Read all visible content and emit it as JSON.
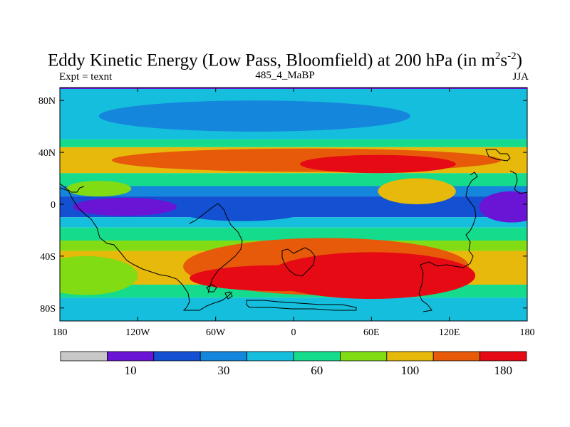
{
  "title": {
    "main": "Eddy Kinetic Energy (Low Pass, Bloomfield) at 200 hPa (in m",
    "sup1": "2",
    "mid": "s",
    "sup2": "-2",
    "close": ")"
  },
  "subtitles": {
    "left": "Expt = texnt",
    "center": "485_4_MaBP",
    "right": "JJA"
  },
  "chart_data": {
    "type": "heatmap",
    "title": "Eddy Kinetic Energy (Low Pass, Bloomfield) at 200 hPa (in m2s-2)",
    "variable": "Eddy Kinetic Energy",
    "units": "m2s-2",
    "level": "200 hPa",
    "season": "JJA",
    "xlim": [
      -180,
      180
    ],
    "ylim": [
      -90,
      90
    ],
    "x_ticks": [
      {
        "value": -180,
        "label": "180"
      },
      {
        "value": -120,
        "label": "120W"
      },
      {
        "value": -60,
        "label": "60W"
      },
      {
        "value": 0,
        "label": "0"
      },
      {
        "value": 60,
        "label": "60E"
      },
      {
        "value": 120,
        "label": "120E"
      },
      {
        "value": 180,
        "label": "180"
      }
    ],
    "y_ticks": [
      {
        "value": 80,
        "label": "80N"
      },
      {
        "value": 40,
        "label": "40N"
      },
      {
        "value": 0,
        "label": "0"
      },
      {
        "value": -40,
        "label": "40S"
      },
      {
        "value": -80,
        "label": "80S"
      }
    ],
    "colorbar": {
      "colors": [
        "#c8c8c8",
        "#6a14d6",
        "#1450d2",
        "#1487dc",
        "#14bedc",
        "#14dc8c",
        "#82dc14",
        "#e6b90a",
        "#e65a0a",
        "#e60a14"
      ],
      "labels": [
        {
          "boundary": 2,
          "text": "10"
        },
        {
          "boundary": 4,
          "text": "30"
        },
        {
          "boundary": 6,
          "text": "60"
        },
        {
          "boundary": 8,
          "text": "100"
        },
        {
          "boundary": 10,
          "text": "180"
        }
      ]
    },
    "field_bands": [
      {
        "lat_top": 90,
        "lat_bottom": 50,
        "level": 4
      },
      {
        "lat_top": 50,
        "lat_bottom": 44,
        "level": 5
      },
      {
        "lat_top": 44,
        "lat_bottom": 24,
        "level": 7
      },
      {
        "lat_top": 24,
        "lat_bottom": 14,
        "level": 5
      },
      {
        "lat_top": 14,
        "lat_bottom": 6,
        "level": 3
      },
      {
        "lat_top": 6,
        "lat_bottom": -10,
        "level": 2
      },
      {
        "lat_top": -10,
        "lat_bottom": -18,
        "level": 4
      },
      {
        "lat_top": -18,
        "lat_bottom": -28,
        "level": 5
      },
      {
        "lat_top": -28,
        "lat_bottom": -36,
        "level": 6
      },
      {
        "lat_top": -36,
        "lat_bottom": -62,
        "level": 7
      },
      {
        "lat_top": -62,
        "lat_bottom": -72,
        "level": 5
      },
      {
        "lat_top": -72,
        "lat_bottom": -90,
        "level": 4
      }
    ],
    "field_blobs": [
      {
        "lon": -30,
        "lat": 68,
        "rlon": 120,
        "rlat": 12,
        "level": 3
      },
      {
        "lon": 10,
        "lat": 34,
        "rlon": 150,
        "rlat": 9,
        "level": 8
      },
      {
        "lon": 65,
        "lat": 31,
        "rlon": 60,
        "rlat": 7,
        "level": 9
      },
      {
        "lon": 95,
        "lat": 10,
        "rlon": 30,
        "rlat": 10,
        "level": 7
      },
      {
        "lon": -150,
        "lat": 12,
        "rlon": 25,
        "rlat": 6,
        "level": 6
      },
      {
        "lon": -130,
        "lat": -2,
        "rlon": 40,
        "rlat": 7,
        "level": 1
      },
      {
        "lon": -40,
        "lat": -5,
        "rlon": 50,
        "rlat": 8,
        "level": 2
      },
      {
        "lon": 168,
        "lat": -2,
        "rlon": 25,
        "rlat": 12,
        "level": 1
      },
      {
        "lon": 25,
        "lat": -48,
        "rlon": 110,
        "rlat": 22,
        "level": 8
      },
      {
        "lon": 60,
        "lat": -55,
        "rlon": 80,
        "rlat": 18,
        "level": 9
      },
      {
        "lon": -10,
        "lat": -57,
        "rlon": 70,
        "rlat": 10,
        "level": 9
      },
      {
        "lon": -160,
        "lat": -55,
        "rlon": 40,
        "rlat": 15,
        "level": 6
      }
    ]
  }
}
